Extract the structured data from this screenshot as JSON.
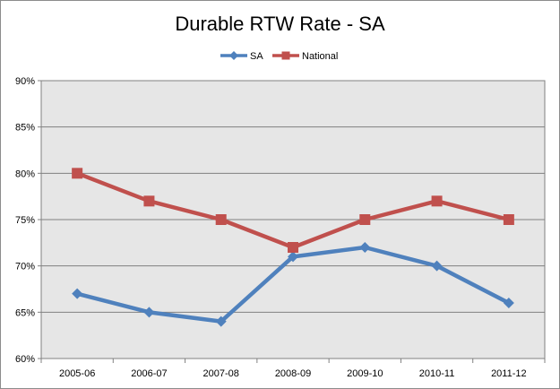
{
  "chart_data": {
    "type": "line",
    "title": "Durable RTW Rate - SA",
    "xlabel": "",
    "ylabel": "",
    "categories": [
      "2005-06",
      "2006-07",
      "2007-08",
      "2008-09",
      "2009-10",
      "2010-11",
      "2011-12"
    ],
    "ylim": [
      60,
      90
    ],
    "yticks": [
      60,
      65,
      70,
      75,
      80,
      85,
      90
    ],
    "ytick_labels": [
      "60%",
      "65%",
      "70%",
      "75%",
      "80%",
      "85%",
      "90%"
    ],
    "grid": "horizontal",
    "legend": "top",
    "series": [
      {
        "name": "SA",
        "color": "#4f81bd",
        "marker": "diamond",
        "values": [
          67,
          65,
          64,
          71,
          72,
          70,
          66
        ]
      },
      {
        "name": "National",
        "color": "#c0504d",
        "marker": "square",
        "values": [
          80,
          77,
          75,
          72,
          75,
          77,
          75
        ]
      }
    ],
    "plot_background": "#e6e6e6"
  }
}
